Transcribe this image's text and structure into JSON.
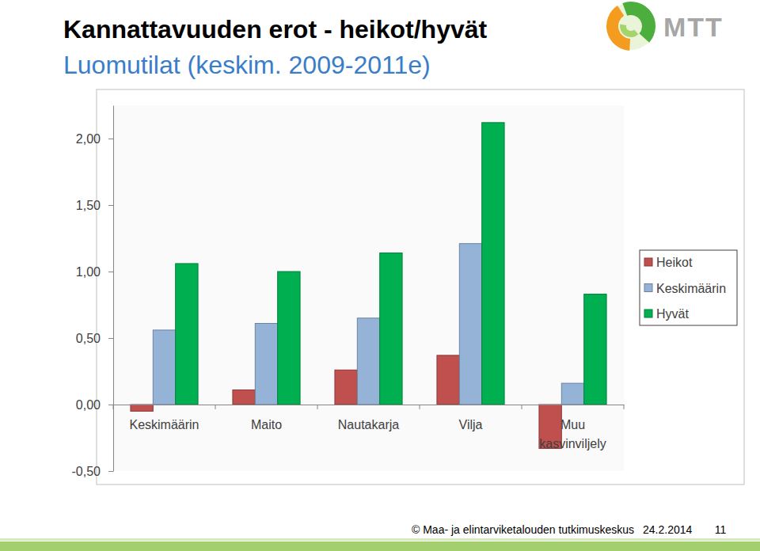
{
  "chart_data": {
    "type": "bar",
    "title": "Kannattavuuden erot - heikot/hyvät",
    "subtitle": "Luomutilat (keskim. 2009-2011e)",
    "categories": [
      "Keskimäärin",
      "Maito",
      "Nautakarja",
      "Vilja",
      "Muu kasvinviljely"
    ],
    "series": [
      {
        "name": "Heikot",
        "color": "#c0504d",
        "values": [
          -0.05,
          0.11,
          0.26,
          0.37,
          -0.33
        ]
      },
      {
        "name": "Keskimäärin",
        "color": "#95b3d7",
        "values": [
          0.56,
          0.61,
          0.65,
          1.21,
          0.16
        ]
      },
      {
        "name": "Hyvät",
        "color": "#00b050",
        "values": [
          1.06,
          1.0,
          1.14,
          2.12,
          0.83
        ]
      }
    ],
    "ylim": [
      -0.5,
      2.25
    ],
    "yticks": [
      {
        "value": -0.5,
        "label": "-0,50"
      },
      {
        "value": 0,
        "label": "0,00"
      },
      {
        "value": 0.5,
        "label": "0,50"
      },
      {
        "value": 1,
        "label": "1,00"
      },
      {
        "value": 1.5,
        "label": "1,50"
      },
      {
        "value": 2,
        "label": "2,00"
      }
    ],
    "grid": false,
    "legend": "right",
    "annotations": [
      "MTT",
      "© Maa- ja elintarviketalouden tutkimuskeskus",
      "24.2.2014",
      "11"
    ]
  }
}
